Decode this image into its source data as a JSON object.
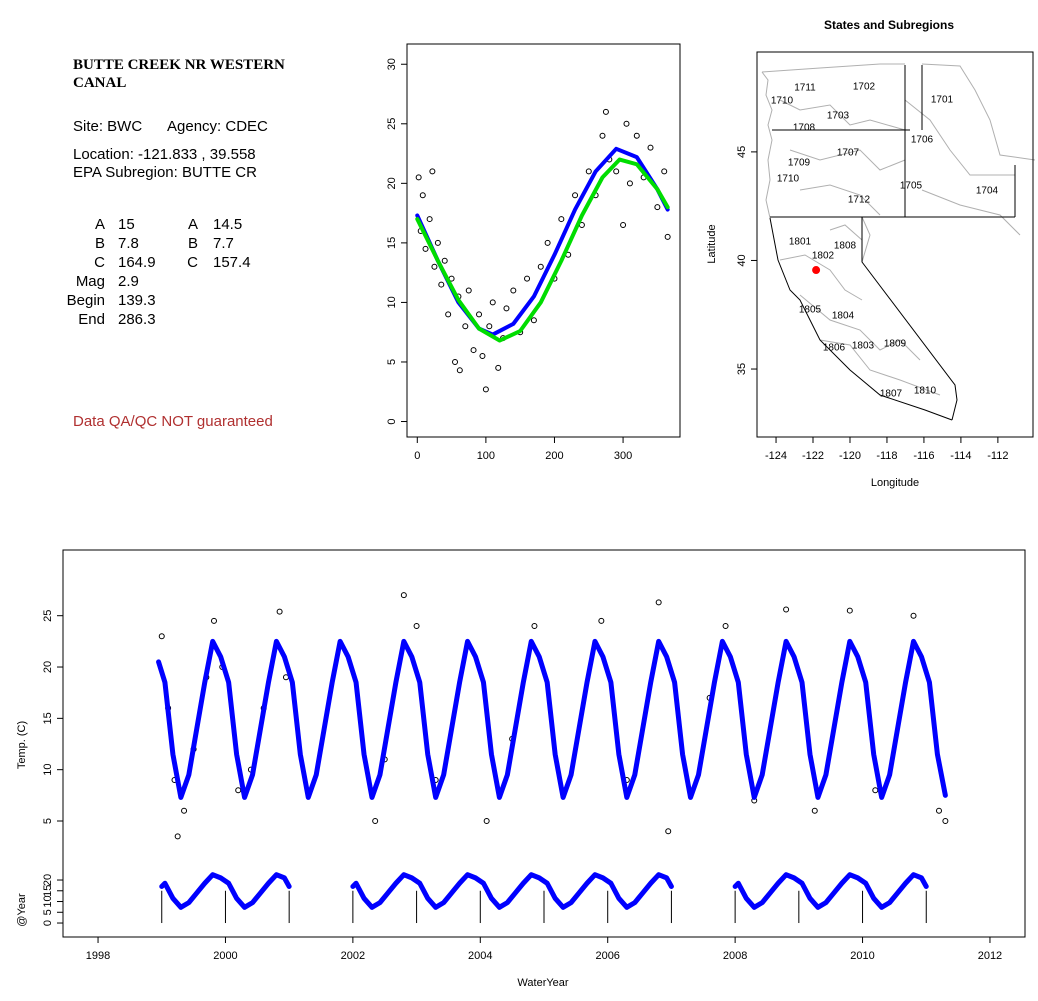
{
  "info": {
    "title": "BUTTE CREEK NR WESTERN CANAL",
    "site": "Site: BWC",
    "agency": "Agency: CDEC",
    "location": "Location: -121.833 , 39.558",
    "subregion": "EPA Subregion: BUTTE CR",
    "params": [
      [
        "A",
        "15",
        "A",
        "14.5"
      ],
      [
        "B",
        "7.8",
        "B",
        "7.7"
      ],
      [
        "C",
        "164.9",
        "C",
        "157.4"
      ],
      [
        "Mag",
        "2.9"
      ],
      [
        "Begin",
        "139.3"
      ],
      [
        "End",
        "286.3"
      ]
    ],
    "disclaimer": "Data QA/QC NOT guaranteed"
  },
  "chart_data": [
    {
      "type": "scatter",
      "xlim": [
        -15,
        383
      ],
      "ylim": [
        -1.3,
        31.7
      ],
      "xticks": [
        0,
        100,
        200,
        300
      ],
      "yticks": [
        0,
        5,
        10,
        15,
        20,
        25,
        30
      ],
      "series": [
        {
          "mode": "points",
          "color": "#000000",
          "x": [
            2,
            5,
            8,
            12,
            18,
            22,
            25,
            30,
            35,
            40,
            45,
            50,
            55,
            60,
            62,
            70,
            75,
            82,
            90,
            95,
            100,
            105,
            110,
            118,
            125,
            130,
            140,
            150,
            160,
            170,
            180,
            190,
            200,
            210,
            220,
            230,
            240,
            250,
            260,
            270,
            275,
            280,
            290,
            300,
            305,
            310,
            320,
            330,
            340,
            350,
            360,
            365
          ],
          "y": [
            20.5,
            16,
            19,
            14.5,
            17,
            21,
            13,
            15,
            11.5,
            13.5,
            9,
            12,
            5,
            10.5,
            4.3,
            8,
            11,
            6,
            9,
            5.5,
            2.7,
            8,
            10,
            4.5,
            7,
            9.5,
            11,
            7.5,
            12,
            8.5,
            13,
            15,
            12,
            17,
            14,
            19,
            16.5,
            21,
            19,
            24,
            26,
            22,
            21,
            16.5,
            25,
            20,
            24,
            20.5,
            23,
            18,
            21,
            15.5
          ]
        },
        {
          "mode": "line",
          "color": "#0000ff",
          "x": [
            0,
            30,
            60,
            90,
            110,
            140,
            170,
            200,
            230,
            260,
            290,
            320,
            350,
            365
          ],
          "y": [
            17.3,
            13.5,
            10,
            7.8,
            7.3,
            8.2,
            10.5,
            14,
            17.8,
            21,
            22.9,
            22.2,
            19.5,
            17.8
          ]
        },
        {
          "mode": "line",
          "color": "#00dd00",
          "x": [
            0,
            30,
            60,
            90,
            120,
            150,
            180,
            210,
            240,
            270,
            295,
            320,
            350,
            365
          ],
          "y": [
            17,
            13.5,
            10.2,
            7.8,
            6.8,
            7.6,
            10,
            13.5,
            17.3,
            20.5,
            22,
            21.6,
            19.5,
            18
          ]
        }
      ]
    },
    {
      "type": "map",
      "title": "States and Subregions",
      "xlabel": "Longitude",
      "ylabel": "Latitude",
      "xlim": [
        -125.03,
        -110.1
      ],
      "ylim": [
        31.87,
        49.6
      ],
      "xticks": [
        -124,
        -122,
        -120,
        -118,
        -116,
        -114,
        -112
      ],
      "yticks": [
        35,
        40,
        45
      ],
      "labels": [
        "1711",
        "1710",
        "1702",
        "1701",
        "1703",
        "1708",
        "1706",
        "1707",
        "1709",
        "1710",
        "1705",
        "1704",
        "1712",
        "1801",
        "1808",
        "1802",
        "1805",
        "1804",
        "1806",
        "1803",
        "1809",
        "1810",
        "1807"
      ],
      "point": {
        "x": -121.833,
        "y": 39.558,
        "color": "#ff0000"
      }
    },
    {
      "type": "line",
      "ylabel": "Temp. (C)",
      "y2label": "@Year",
      "xlabel": "WaterYear",
      "xlim": [
        1997.45,
        2012.55
      ],
      "ylim": [
        -6.3,
        31.4
      ],
      "y2lim": [
        -6.5,
        173.5
      ],
      "xticks": [
        1998,
        2000,
        2002,
        2004,
        2006,
        2008,
        2010,
        2012
      ],
      "yticks": [
        5,
        10,
        15,
        20,
        25
      ],
      "y2ticks": [
        0,
        5,
        10,
        15,
        20
      ],
      "year_marks": [
        1999,
        2000,
        2001,
        2002,
        2003,
        2004,
        2005,
        2006,
        2007,
        2008,
        2009,
        2010,
        2011
      ],
      "series": [
        {
          "mode": "points",
          "color": "#000000",
          "x": [
            1999.0,
            1999.1,
            1999.2,
            1999.25,
            1999.35,
            1999.5,
            1999.7,
            1999.82,
            1999.95,
            2000.2,
            2000.4,
            2000.6,
            2000.85,
            2000.95,
            2002.35,
            2002.5,
            2002.8,
            2003.0,
            2003.3,
            2003.8,
            2004.1,
            2004.5,
            2004.85,
            2005.3,
            2005.9,
            2006.3,
            2006.8,
            2006.95,
            2007.6,
            2007.85,
            2008.3,
            2008.8,
            2009.25,
            2009.8,
            2010.2,
            2010.8,
            2011.2,
            2011.3
          ],
          "y": [
            23,
            16,
            9,
            3.5,
            6,
            12,
            19,
            24.5,
            20,
            8,
            10,
            16,
            25.4,
            19,
            5,
            11,
            27,
            24,
            9,
            22,
            5,
            13,
            24,
            8,
            24.5,
            9,
            26.3,
            4,
            17,
            24,
            7,
            25.6,
            6,
            25.5,
            8,
            25,
            6,
            5
          ]
        },
        {
          "mode": "line",
          "color": "#0000ff",
          "x": [
            1998.95,
            1999.05,
            1999.175,
            1999.3,
            1999.425,
            1999.55,
            1999.675,
            1999.8,
            1999.925,
            2000.05,
            2000.175,
            2000.3,
            2000.425,
            2000.55,
            2000.675,
            2000.8,
            2000.925,
            2001.05,
            2001.175,
            2001.3,
            2001.425,
            2001.55,
            2001.675,
            2001.8,
            2001.925,
            2002.05,
            2002.175,
            2002.3,
            2002.425,
            2002.55,
            2002.675,
            2002.8,
            2002.925,
            2003.05,
            2003.175,
            2003.3,
            2003.425,
            2003.55,
            2003.675,
            2003.8,
            2003.925,
            2004.05,
            2004.175,
            2004.3,
            2004.425,
            2004.55,
            2004.675,
            2004.8,
            2004.925,
            2005.05,
            2005.175,
            2005.3,
            2005.425,
            2005.55,
            2005.675,
            2005.8,
            2005.925,
            2006.05,
            2006.175,
            2006.3,
            2006.425,
            2006.55,
            2006.675,
            2006.8,
            2006.925,
            2007.05,
            2007.175,
            2007.3,
            2007.425,
            2007.55,
            2007.675,
            2007.8,
            2007.925,
            2008.05,
            2008.175,
            2008.3,
            2008.425,
            2008.55,
            2008.675,
            2008.8,
            2008.925,
            2009.05,
            2009.175,
            2009.3,
            2009.425,
            2009.55,
            2009.675,
            2009.8,
            2009.925,
            2010.05,
            2010.175,
            2010.3,
            2010.425,
            2010.55,
            2010.675,
            2010.8,
            2010.925,
            2011.05,
            2011.175,
            2011.3
          ],
          "y": [
            20.5,
            18.5,
            11.5,
            7.3,
            9.5,
            14,
            18.5,
            22.5,
            21,
            18.5,
            11.5,
            7.3,
            9.5,
            14,
            18.5,
            22.5,
            21,
            18.5,
            11.5,
            7.3,
            9.5,
            14,
            18.5,
            22.5,
            21,
            18.5,
            11.5,
            7.3,
            9.5,
            14,
            18.5,
            22.5,
            21,
            18.5,
            11.5,
            7.3,
            9.5,
            14,
            18.5,
            22.5,
            21,
            18.5,
            11.5,
            7.3,
            9.5,
            14,
            18.5,
            22.5,
            21,
            18.5,
            11.5,
            7.3,
            9.5,
            14,
            18.5,
            22.5,
            21,
            18.5,
            11.5,
            7.3,
            9.5,
            14,
            18.5,
            22.5,
            21,
            18.5,
            11.5,
            7.3,
            9.5,
            14,
            18.5,
            22.5,
            21,
            18.5,
            11.5,
            7.3,
            9.5,
            14,
            18.5,
            22.5,
            21,
            18.5,
            11.5,
            7.3,
            9.5,
            14,
            18.5,
            22.5,
            21,
            18.5,
            11.5,
            7.3,
            9.5,
            14,
            18.5,
            22.5,
            21,
            18.5,
            11.5,
            7.5
          ]
        },
        {
          "mode": "line",
          "axis": "y2",
          "color": "#0000ff",
          "x": [
            1999,
            1999.05,
            1999.175,
            1999.3,
            1999.425,
            1999.55,
            1999.675,
            1999.8,
            1999.925,
            2000.05,
            2000.175,
            2000.3,
            2000.425,
            2000.55,
            2000.675,
            2000.8,
            2000.925,
            2001,
            2001.5,
            2002,
            2002.05,
            2002.175,
            2002.3,
            2002.425,
            2002.55,
            2002.675,
            2002.8,
            2002.925,
            2003.05,
            2003.175,
            2003.3,
            2003.425,
            2003.55,
            2003.675,
            2003.8,
            2003.925,
            2004.05,
            2004.175,
            2004.3,
            2004.425,
            2004.55,
            2004.675,
            2004.8,
            2004.925,
            2005.05,
            2005.175,
            2005.3,
            2005.425,
            2005.55,
            2005.675,
            2005.8,
            2005.925,
            2006.05,
            2006.175,
            2006.3,
            2006.425,
            2006.55,
            2006.675,
            2006.8,
            2006.925,
            2007,
            2007.5,
            2008,
            2008.05,
            2008.175,
            2008.3,
            2008.425,
            2008.55,
            2008.675,
            2008.8,
            2008.925,
            2009.05,
            2009.175,
            2009.3,
            2009.425,
            2009.55,
            2009.675,
            2009.8,
            2009.925,
            2010.05,
            2010.175,
            2010.3,
            2010.425,
            2010.55,
            2010.675,
            2010.8,
            2010.925,
            2011
          ],
          "y": [
            17,
            18.5,
            11.5,
            7.3,
            9.5,
            14,
            18.5,
            22.5,
            21,
            18.5,
            11.5,
            7.3,
            9.5,
            14,
            18.5,
            22.5,
            21,
            17,
            null,
            17,
            18.5,
            11.5,
            7.3,
            9.5,
            14,
            18.5,
            22.5,
            21,
            18.5,
            11.5,
            7.3,
            9.5,
            14,
            18.5,
            22.5,
            21,
            18.5,
            11.5,
            7.3,
            9.5,
            14,
            18.5,
            22.5,
            21,
            18.5,
            11.5,
            7.3,
            9.5,
            14,
            18.5,
            22.5,
            21,
            18.5,
            11.5,
            7.3,
            9.5,
            14,
            18.5,
            22.5,
            21,
            17,
            null,
            17,
            18.5,
            11.5,
            7.3,
            9.5,
            14,
            18.5,
            22.5,
            21,
            18.5,
            11.5,
            7.3,
            9.5,
            14,
            18.5,
            22.5,
            21,
            18.5,
            11.5,
            7.3,
            9.5,
            14,
            18.5,
            22.5,
            21,
            17
          ]
        }
      ]
    }
  ]
}
